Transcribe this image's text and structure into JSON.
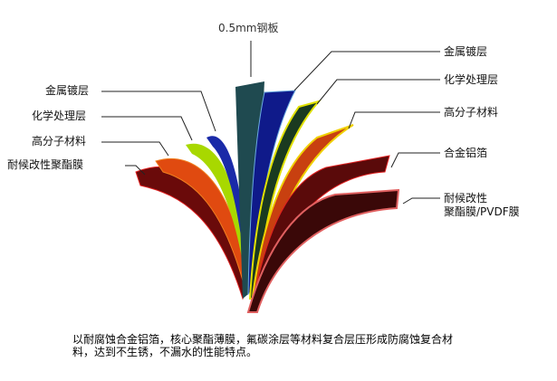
{
  "top_label": "0.5mm钢板",
  "left_labels": [
    "金属镀层",
    "化学处理层",
    "高分子材料",
    "耐候改性聚酯膜"
  ],
  "right_labels": [
    "金属镀层",
    "化学处理层",
    "高分子材料",
    "合金铝箔"
  ],
  "right_last": {
    "line1": "耐候改性",
    "line2": "聚酯膜/PVDF膜"
  },
  "caption": {
    "line1": "以耐腐蚀合金铝箔，核心聚酯薄膜，氟碳涂层等材料复合层压形成防腐蚀复合材",
    "line2": "料，达到不生锈，不漏水的性能特点。"
  },
  "colors": {
    "steel": "#1f4a50",
    "metal": "#0f1a8a",
    "chem": "#d8e000",
    "polymer": "#d84a10",
    "foil": "#5a0a0a",
    "film": "#7a0a0a"
  }
}
